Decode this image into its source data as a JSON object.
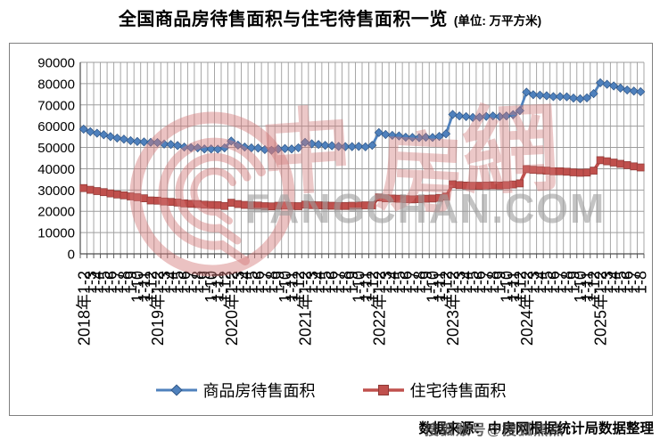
{
  "title": {
    "main": "全国商品房待售面积与住宅待售面积一览",
    "unit": "(单位: 万平方米)"
  },
  "legend": [
    {
      "label": "商品房待售面积",
      "color": "#4F81BD",
      "edge": "#2E5687",
      "marker": "diamond"
    },
    {
      "label": "住宅待售面积",
      "color": "#C0504D",
      "edge": "#8E3835",
      "marker": "square"
    }
  ],
  "source": {
    "text": "数据来源：中房网根据统计局数据整理",
    "watermark_overlay": "搜狐账号@搜狐焦点"
  },
  "watermark": {
    "logo": "zhongfangwang-swirl-logo",
    "chars": [
      "中",
      "房",
      "網"
    ],
    "domain": "FANGCHAN.COM",
    "pink": "#D27878",
    "gray": "#9E9E9E"
  },
  "chart_data": {
    "type": "line",
    "title": "全国商品房待售面积与住宅待售面积一览 (单位: 万平方米)",
    "xlabel": "",
    "ylabel": "万平方米",
    "ylim": [
      0,
      90000
    ],
    "ytick_step": 10000,
    "grid": true,
    "grid_color": "#9D9D9D",
    "legend_position": "bottom",
    "x": [
      "2018年1-2",
      "1-3",
      "1-4",
      "1-5",
      "1-6",
      "1-7",
      "1-8",
      "1-9",
      "1-10",
      "1-11",
      "1-12",
      "2019年1-2",
      "1-3",
      "1-4",
      "1-5",
      "1-6",
      "1-7",
      "1-8",
      "1-9",
      "1-10",
      "1-11",
      "1-12",
      "2020年1-2",
      "1-3",
      "1-4",
      "1-5",
      "1-6",
      "1-7",
      "1-8",
      "1-9",
      "1-10",
      "1-11",
      "1-12",
      "2021年1-2",
      "1-3",
      "1-4",
      "1-5",
      "1-6",
      "1-7",
      "1-8",
      "1-9",
      "1-10",
      "1-11",
      "1-12",
      "2022年1-2",
      "1-3",
      "1-4",
      "1-5",
      "1-6",
      "1-7",
      "1-8",
      "1-9",
      "1-10",
      "1-11",
      "1-12",
      "2023年1-2",
      "1-3",
      "1-4",
      "1-5",
      "1-6",
      "1-7",
      "1-8",
      "1-9",
      "1-10",
      "1-11",
      "1-12",
      "2024年1-2",
      "1-3",
      "1-4",
      "1-5",
      "1-6",
      "1-7",
      "1-8",
      "1-9",
      "1-10",
      "1-11",
      "1-12",
      "2025年1-2",
      "1-3",
      "1-4",
      "1-5",
      "1-6",
      "1-7",
      "1-8"
    ],
    "series": [
      {
        "name": "商品房待售面积",
        "color": "#4F81BD",
        "edge": "#2E5687",
        "marker": "diamond",
        "values": [
          58600,
          57400,
          56700,
          56000,
          55100,
          54400,
          53900,
          53200,
          52800,
          52600,
          52400,
          52300,
          51600,
          51400,
          50900,
          50200,
          49900,
          49800,
          49300,
          49300,
          49200,
          49800,
          53000,
          51100,
          50200,
          49800,
          49700,
          49000,
          48700,
          49300,
          49500,
          49300,
          49850,
          52400,
          51700,
          51400,
          51000,
          50800,
          50500,
          50400,
          50400,
          50500,
          50300,
          51000,
          57000,
          56100,
          55700,
          55400,
          54800,
          54700,
          54600,
          54800,
          54700,
          55200,
          56400,
          65500,
          64800,
          64500,
          64100,
          64200,
          64600,
          64800,
          64500,
          64800,
          65400,
          67300,
          76000,
          74800,
          74600,
          74300,
          73900,
          73900,
          73800,
          73200,
          72900,
          73300,
          75300,
          80400,
          79700,
          78900,
          77900,
          77000,
          76500,
          76200
        ]
      },
      {
        "name": "住宅待售面积",
        "color": "#C0504D",
        "edge": "#8E3835",
        "marker": "square",
        "values": [
          30900,
          30100,
          29500,
          29000,
          28400,
          27900,
          27500,
          27000,
          26600,
          26100,
          25100,
          25000,
          24600,
          24400,
          24100,
          23700,
          23500,
          23400,
          23100,
          23000,
          22900,
          22500,
          24000,
          23400,
          23000,
          22800,
          22700,
          22400,
          22300,
          22600,
          22700,
          22500,
          22400,
          23100,
          22900,
          22800,
          22700,
          22600,
          22500,
          22500,
          22600,
          22700,
          22800,
          22800,
          26500,
          26100,
          26000,
          25900,
          25700,
          25600,
          25700,
          25900,
          26000,
          26300,
          26900,
          32700,
          32300,
          32100,
          32000,
          32000,
          32100,
          32200,
          32100,
          32300,
          32600,
          33100,
          39800,
          39500,
          39300,
          39100,
          38800,
          38800,
          38600,
          38300,
          38100,
          38200,
          39100,
          44000,
          43500,
          42900,
          42300,
          41700,
          41100,
          40600
        ]
      }
    ]
  }
}
